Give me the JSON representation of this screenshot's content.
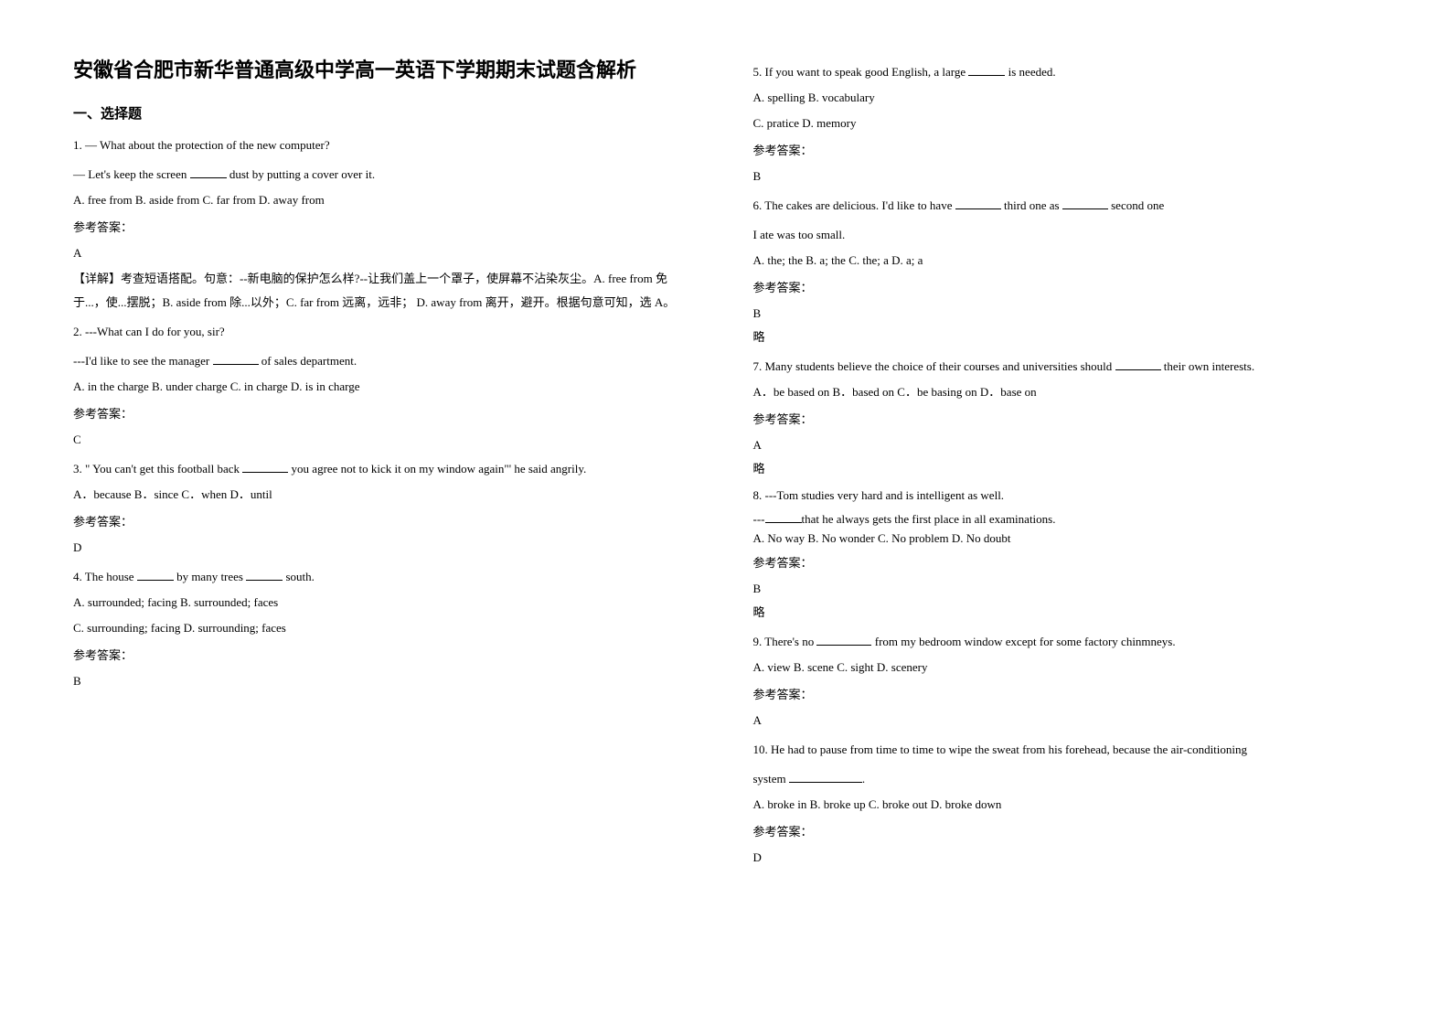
{
  "title": "安徽省合肥市新华普通高级中学高一英语下学期期末试题含解析",
  "section_heading": "一、选择题",
  "answer_label": "参考答案：",
  "omit_label": "略",
  "explanation_label": "【详解】",
  "left": {
    "q1": {
      "line1": "1. — What about the protection of the new computer?",
      "line2_a": "— Let's keep the screen ",
      "line2_b": " dust by putting a cover over it.",
      "opts": "A. free from    B. aside from   C. far from     D. away from",
      "answer": "A",
      "expl": "考查短语搭配。句意：--新电脑的保护怎么样?--让我们盖上一个罩子，使屏幕不沾染灰尘。A. free from 免于...，使...摆脱；B. aside from 除...以外；C. far from 远离，远非； D. away from 离开，避开。根据句意可知，选 A。"
    },
    "q2": {
      "line1": "2. ---What can I do for you, sir?",
      "line2_a": " ---I'd like to see the manager ",
      "line2_b": " of sales department.",
      "opts": " A. in the charge   B. under charge    C. in charge    D. is in charge",
      "answer": "C"
    },
    "q3": {
      "line1_a": "3. \" You can't get this football back ",
      "line1_b": " you agree not to kick it on my window again\"' he said angrily.",
      "opts": "A．because          B．since          C．when          D．until",
      "answer": "D"
    },
    "q4": {
      "line1_a": "4. The house ",
      "line1_b": " by many trees ",
      "line1_c": " south.",
      "opts1": "A. surrounded; facing    B. surrounded; faces",
      "opts2": "C. surrounding; facing    D. surrounding; faces",
      "answer": "B"
    }
  },
  "right": {
    "q5": {
      "line1_a": "5. If you want to speak good English, a large ",
      "line1_b": " is needed.",
      "opts1": "A. spelling                          B. vocabulary",
      "opts2": "C. pratice                   D. memory",
      "answer": "B"
    },
    "q6": {
      "line1_a": "6. The cakes are delicious. I'd like to have ",
      "line1_b": " third one as ",
      "line1_c": " second one",
      "line2": "   I ate was too small.",
      "opts": " A. the; the          B. a; the               C. the; a                D. a; a",
      "answer": "B"
    },
    "q7": {
      "line1_a": "7. Many students believe the choice of their courses and universities should ",
      "line1_b": " their own interests.",
      "opts": "  A．be based on           B．based on  C．be basing on              D．base on",
      "answer": "A"
    },
    "q8": {
      "line1": "8. ---Tom studies very hard and is intelligent as well.",
      "line2_a": "    ---",
      "line2_b": "that he always gets the first place in all examinations.",
      "opts": "A. No way    B. No wonder    C. No problem   D. No doubt",
      "answer": "B"
    },
    "q9": {
      "line1_a": "9. There's no ",
      "line1_b": " from my bedroom window except for some factory chinmneys.",
      "opts": "A. view   B. scene   C. sight   D. scenery",
      "answer": "A"
    },
    "q10": {
      "line1": "10. He had to pause from time to time to wipe the sweat from his forehead, because the air-conditioning",
      "line2_a": "system ",
      "line2_b": ".",
      "opts": "A. broke in   B. broke up   C. broke out   D. broke down",
      "answer": "D"
    }
  }
}
